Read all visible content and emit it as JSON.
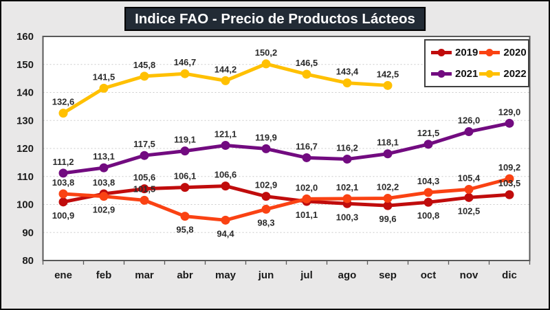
{
  "window": {
    "background": "#e9e8e8",
    "border_color": "#0a0a0a"
  },
  "title": {
    "text": "Indice FAO - Precio de Productos Lácteos",
    "bg": "#222b35",
    "text_color": "#ffffff"
  },
  "legend": {
    "position": "top-right",
    "items": [
      {
        "label": "2019",
        "color": "#c00c0c"
      },
      {
        "label": "2020",
        "color": "#fa4213"
      },
      {
        "label": "2021",
        "color": "#720b80"
      },
      {
        "label": "2022",
        "color": "#ffc000"
      }
    ]
  },
  "chart_data": {
    "type": "line",
    "title": "Indice FAO - Precio de Productos Lácteos",
    "categories": [
      "ene",
      "feb",
      "mar",
      "abr",
      "may",
      "jun",
      "jul",
      "ago",
      "sep",
      "oct",
      "nov",
      "dic"
    ],
    "ylabel": "",
    "xlabel": "",
    "ylim": [
      80,
      160
    ],
    "y_step": 10,
    "y_ticks": [
      160,
      150,
      140,
      130,
      120,
      110,
      100,
      90,
      80
    ],
    "grid": "horizontal-dashed",
    "legend_position": "top-right",
    "series": [
      {
        "name": "2019",
        "color": "#c00c0c",
        "values": [
          100.9,
          103.8,
          105.6,
          106.1,
          106.6,
          102.9,
          101.1,
          100.3,
          99.6,
          100.8,
          102.5,
          103.5
        ],
        "labels": [
          "100,9",
          "103,8",
          "105,6",
          "106,1",
          "106,6",
          "102,9",
          "101,1",
          "100,3",
          "99,6",
          "100,8",
          "102,5",
          "103,5"
        ],
        "label_side": [
          "below",
          "above",
          "above",
          "above",
          "above",
          "above",
          "below",
          "below",
          "below",
          "below",
          "below",
          "above"
        ]
      },
      {
        "name": "2020",
        "color": "#fa4213",
        "values": [
          103.8,
          102.9,
          101.5,
          95.8,
          94.4,
          98.3,
          102.0,
          102.1,
          102.2,
          104.3,
          105.4,
          109.2
        ],
        "labels": [
          "103,8",
          "102,9",
          "101,5",
          "95,8",
          "94,4",
          "98,3",
          "102,0",
          "102,1",
          "102,2",
          "104,3",
          "105,4",
          "109,2"
        ],
        "label_side": [
          "above",
          "below",
          "above",
          "below",
          "below",
          "below",
          "above",
          "above",
          "above",
          "above",
          "above",
          "above"
        ]
      },
      {
        "name": "2021",
        "color": "#720b80",
        "values": [
          111.2,
          113.1,
          117.5,
          119.1,
          121.1,
          119.9,
          116.7,
          116.2,
          118.1,
          121.5,
          126.0,
          129.0
        ],
        "labels": [
          "111,2",
          "113,1",
          "117,5",
          "119,1",
          "121,1",
          "119,9",
          "116,7",
          "116,2",
          "118,1",
          "121,5",
          "126,0",
          "129,0"
        ],
        "label_side": [
          "above",
          "above",
          "above",
          "above",
          "above",
          "above",
          "above",
          "above",
          "above",
          "above",
          "above",
          "above"
        ]
      },
      {
        "name": "2022",
        "color": "#ffc000",
        "values": [
          132.6,
          141.5,
          145.8,
          146.7,
          144.2,
          150.2,
          146.5,
          143.4,
          142.5,
          null,
          null,
          null
        ],
        "labels": [
          "132,6",
          "141,5",
          "145,8",
          "146,7",
          "144,2",
          "150,2",
          "146,5",
          "143,4",
          "142,5"
        ],
        "label_side": [
          "above",
          "above",
          "above",
          "above",
          "above",
          "above",
          "above",
          "above",
          "above"
        ]
      }
    ],
    "plot_style": {
      "frame_color": "#595959",
      "grid_color": "#c9c9c9",
      "plot_bg": "#ffffff",
      "line_width": 5,
      "marker_radius": 6.5,
      "data_label_color": "#2b2b2b",
      "tick_label_color": "#1a1a1a"
    }
  }
}
